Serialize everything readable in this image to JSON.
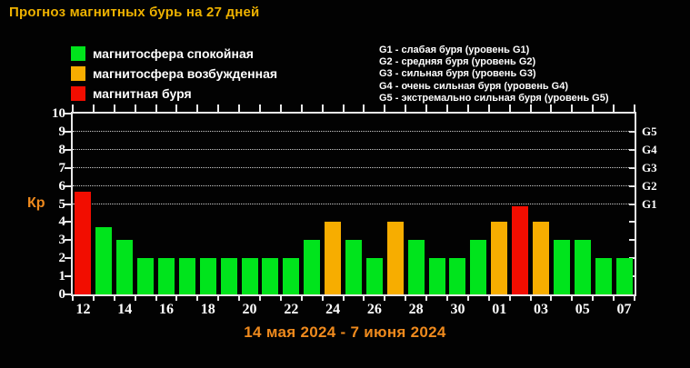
{
  "title": "Прогноз магнитных бурь на 27 дней",
  "caption": "14 мая 2024 - 7 июня 2024",
  "colors": {
    "background": "#020202",
    "title": "#eeb200",
    "orange_text": "#ef8a1d",
    "axis": "#e8e8e8",
    "grid": "#cfcfcf",
    "quiet": "#00e41c",
    "excited": "#f7ad00",
    "storm": "#f20d00"
  },
  "legend": {
    "items": [
      {
        "status": "quiet",
        "label": "магнитосфера спокойная"
      },
      {
        "status": "excited",
        "label": "магнитосфера возбужденная"
      },
      {
        "status": "storm",
        "label": "магнитная буря"
      }
    ]
  },
  "storm_levels_info": {
    "lines": [
      "G1 - слабая буря (уровень G1)",
      "G2 - средняя буря (уровень G2)",
      "G3 - сильная буря (уровень G3)",
      "G4 - очень сильная буря (уровень G4)",
      "G5 - экстремально сильная буря (уровень G5)"
    ]
  },
  "axis": {
    "kp_label": "Кр",
    "y_ticks": [
      0,
      1,
      2,
      3,
      4,
      5,
      6,
      7,
      8,
      9,
      10
    ],
    "right_level_labels": [
      {
        "label": "G5",
        "kp": 9
      },
      {
        "label": "G4",
        "kp": 8
      },
      {
        "label": "G3",
        "kp": 7
      },
      {
        "label": "G2",
        "kp": 6
      },
      {
        "label": "G1",
        "kp": 5
      }
    ]
  },
  "chart_data": {
    "type": "bar",
    "title": "Прогноз магнитных бурь на 27 дней",
    "ylabel": "Кр",
    "ylim": [
      0,
      10
    ],
    "grid_levels": [
      5,
      6,
      7,
      8,
      9
    ],
    "legend_position": "top-left",
    "x_tick_labels": [
      "12",
      "14",
      "16",
      "18",
      "20",
      "22",
      "24",
      "26",
      "28",
      "30",
      "01",
      "03",
      "05",
      "07"
    ],
    "values": [
      5.7,
      3.7,
      3,
      2,
      2,
      2,
      2,
      2,
      2,
      2,
      2,
      3,
      4,
      3,
      2,
      4,
      3,
      2,
      2,
      3,
      4,
      4.9,
      4,
      3,
      3,
      2,
      2
    ],
    "statuses": [
      "storm",
      "quiet",
      "quiet",
      "quiet",
      "quiet",
      "quiet",
      "quiet",
      "quiet",
      "quiet",
      "quiet",
      "quiet",
      "quiet",
      "excited",
      "quiet",
      "quiet",
      "excited",
      "quiet",
      "quiet",
      "quiet",
      "quiet",
      "excited",
      "storm",
      "excited",
      "quiet",
      "quiet",
      "quiet",
      "quiet"
    ]
  }
}
